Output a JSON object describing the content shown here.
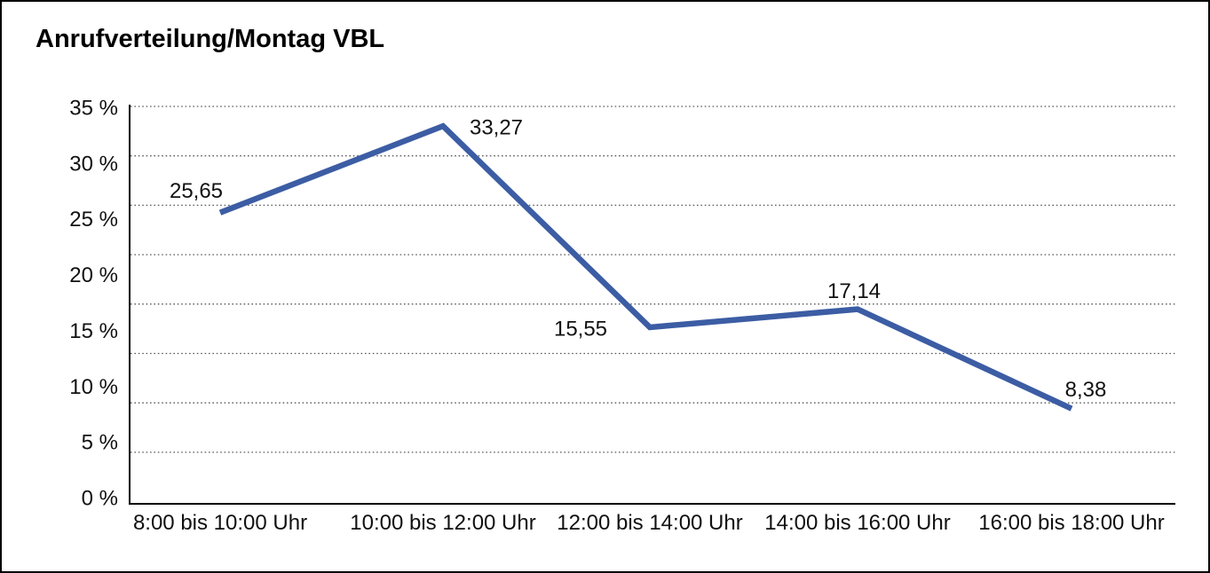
{
  "title": "Anrufverteilung/Montag VBL",
  "chart_data": {
    "type": "line",
    "title": "Anrufverteilung/Montag VBL",
    "categories": [
      "8:00 bis 10:00 Uhr",
      "10:00 bis 12:00 Uhr",
      "12:00 bis 14:00 Uhr",
      "14:00 bis 16:00 Uhr",
      "16:00 bis 18:00 Uhr"
    ],
    "values": [
      25.65,
      33.27,
      15.55,
      17.14,
      8.38
    ],
    "data_labels": [
      "25,65",
      "33,27",
      "15,55",
      "17,14",
      "8,38"
    ],
    "y_tick_labels": [
      "35 %",
      "30 %",
      "25 %",
      "20 %",
      "15 %",
      "10 %",
      "5 %",
      "0 %"
    ],
    "ylim": [
      0,
      35
    ],
    "y_tick_step": 5,
    "xlabel": "",
    "ylabel": "",
    "series_name": "Anrufverteilung Montag",
    "unit": "%",
    "legend": "none",
    "grid": "horizontal dotted lines",
    "line_color": "#3C5DA4",
    "axis_color": "#000000",
    "gridline_color": "#5a5a5a",
    "text_color": "#111111"
  }
}
